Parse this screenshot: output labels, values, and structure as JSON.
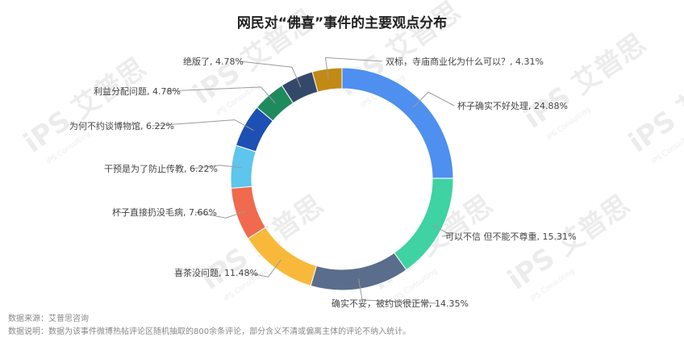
{
  "chart_data": {
    "type": "pie",
    "title": "网民对“佛喜”事件的主要观点分布",
    "donut": true,
    "slices": [
      {
        "label": "杯子确实不好处理, 24.88%",
        "value": 24.88,
        "color": "#4e8ff0"
      },
      {
        "label": "可以不信 但不能不尊重, 15.31%",
        "value": 15.31,
        "color": "#3fd2a3"
      },
      {
        "label": "确实不妥，被约谈很正常, 14.35%",
        "value": 14.35,
        "color": "#5a6d8c"
      },
      {
        "label": "喜茶没问题, 11.48%",
        "value": 11.48,
        "color": "#f8b93a"
      },
      {
        "label": "杯子直接扔没毛病, 7.66%",
        "value": 7.66,
        "color": "#ef6a4f"
      },
      {
        "label": "干预是为了防止传教, 6.22%",
        "value": 6.22,
        "color": "#5ec5ec"
      },
      {
        "label": "为何不约谈博物馆, 6.22%",
        "value": 6.22,
        "color": "#1e4fb3"
      },
      {
        "label": "利益分配问题, 4.78%",
        "value": 4.78,
        "color": "#1f8a5d"
      },
      {
        "label": "绝版了, 4.78%",
        "value": 4.78,
        "color": "#34496a"
      },
      {
        "label": "双标，寺庙商业化为什么可以？, 4.31%",
        "value": 4.31,
        "color": "#c18a16"
      }
    ]
  },
  "footer": {
    "source": "数据来源：艾普思咨询",
    "note": "数据说明：数据为该事件微博热帖评论区随机抽取的800余条评论，部分含义不清或偏离主体的评论不纳入统计。"
  },
  "watermark": {
    "text": "iPS 艾普思",
    "sub": "iPS Consulting"
  }
}
